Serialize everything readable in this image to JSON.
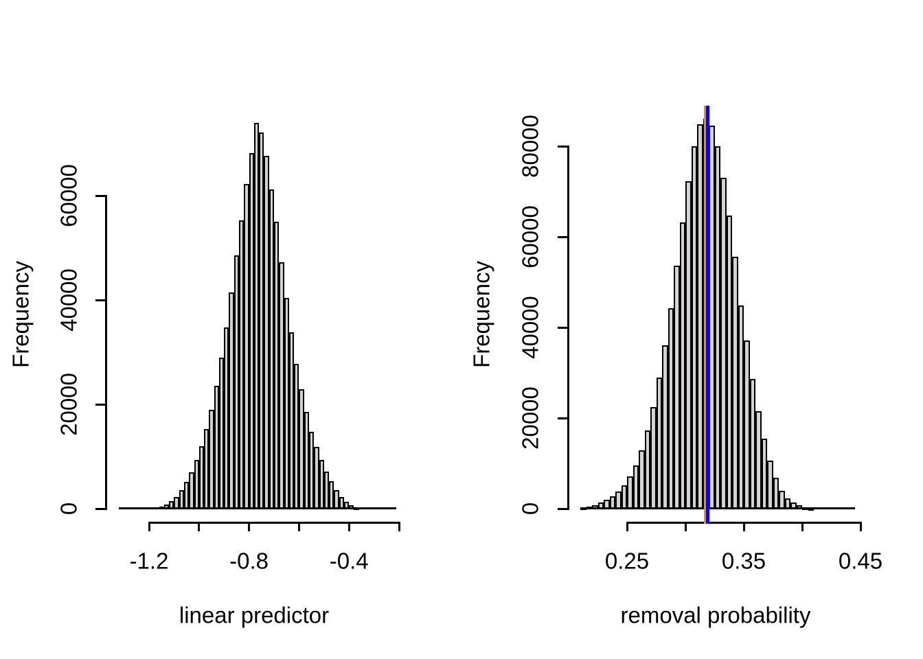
{
  "colors": {
    "background": "#FFFFFF",
    "axis": "#000000",
    "text": "#000000",
    "bar_fill": "#D3D3D3",
    "bar_border": "#000000",
    "blue_line": "#0000FF",
    "orange_line": "#FF8C00"
  },
  "chart_data": [
    {
      "type": "histogram",
      "panel": "left",
      "title": "",
      "xlabel": "linear predictor",
      "ylabel": "Frequency",
      "bar_fill": "#D3D3D3",
      "bar_border": "#000000",
      "grid": false,
      "legend": null,
      "xlim": [
        -1.32,
        -0.2
      ],
      "ylim": [
        0,
        74000
      ],
      "bins": {
        "start": -1.16,
        "width": 0.02
      },
      "counts": [
        400,
        800,
        1400,
        2300,
        3500,
        5100,
        7000,
        9300,
        12000,
        15200,
        19000,
        23500,
        28900,
        34800,
        41400,
        48500,
        55300,
        62200,
        68100,
        74000,
        72100,
        67600,
        61200,
        55000,
        47200,
        40400,
        33800,
        27700,
        22900,
        18500,
        14800,
        11800,
        9300,
        7100,
        5200,
        3500,
        2300,
        1300,
        700,
        300
      ],
      "baseline_range": [
        -1.32,
        -0.21
      ],
      "x_axis": {
        "ticks": [
          {
            "value": -1.2,
            "label": "-1.2"
          },
          {
            "value": -1.0,
            "label": ""
          },
          {
            "value": -0.8,
            "label": "-0.8"
          },
          {
            "value": -0.6,
            "label": ""
          },
          {
            "value": -0.4,
            "label": "-0.4"
          },
          {
            "value": -0.2,
            "label": ""
          }
        ]
      },
      "y_axis": {
        "ticks": [
          {
            "value": 0,
            "label": "0"
          },
          {
            "value": 20000,
            "label": "20000"
          },
          {
            "value": 40000,
            "label": "40000"
          },
          {
            "value": 60000,
            "label": "60000"
          }
        ]
      },
      "ref_lines": []
    },
    {
      "type": "histogram",
      "panel": "right",
      "title": "",
      "xlabel": "removal probability",
      "ylabel": "Frequency",
      "bar_fill": "#D3D3D3",
      "bar_border": "#000000",
      "grid": false,
      "legend": null,
      "xlim": [
        0.21,
        0.445
      ],
      "ylim": [
        0,
        86100
      ],
      "bins": {
        "start": 0.21,
        "width": 0.005
      },
      "counts": [
        250,
        500,
        800,
        1300,
        1900,
        2700,
        3800,
        5100,
        7100,
        9600,
        12900,
        17200,
        22500,
        28900,
        36100,
        44200,
        53600,
        63200,
        72200,
        80000,
        84900,
        86100,
        84600,
        80000,
        73000,
        64700,
        55600,
        44900,
        37100,
        28700,
        21500,
        15400,
        10600,
        6800,
        3900,
        2300,
        1400,
        700,
        350,
        200,
        100,
        50,
        30,
        20,
        10,
        10,
        10
      ],
      "baseline_range": [
        0.21,
        0.445
      ],
      "x_axis": {
        "ticks": [
          {
            "value": 0.25,
            "label": "0.25"
          },
          {
            "value": 0.3,
            "label": ""
          },
          {
            "value": 0.35,
            "label": "0.35"
          },
          {
            "value": 0.4,
            "label": ""
          },
          {
            "value": 0.45,
            "label": "0.45"
          }
        ]
      },
      "y_axis": {
        "ticks": [
          {
            "value": 0,
            "label": "0"
          },
          {
            "value": 20000,
            "label": "20000"
          },
          {
            "value": 40000,
            "label": "40000"
          },
          {
            "value": 60000,
            "label": "60000"
          },
          {
            "value": 80000,
            "label": "80000"
          }
        ]
      },
      "ref_lines": [
        {
          "name": "orange-line",
          "value": 0.3167,
          "color": "#FF8C00",
          "width": 3
        },
        {
          "name": "blue-line",
          "value": 0.319,
          "color": "#0000FF",
          "width": 5
        }
      ]
    }
  ]
}
